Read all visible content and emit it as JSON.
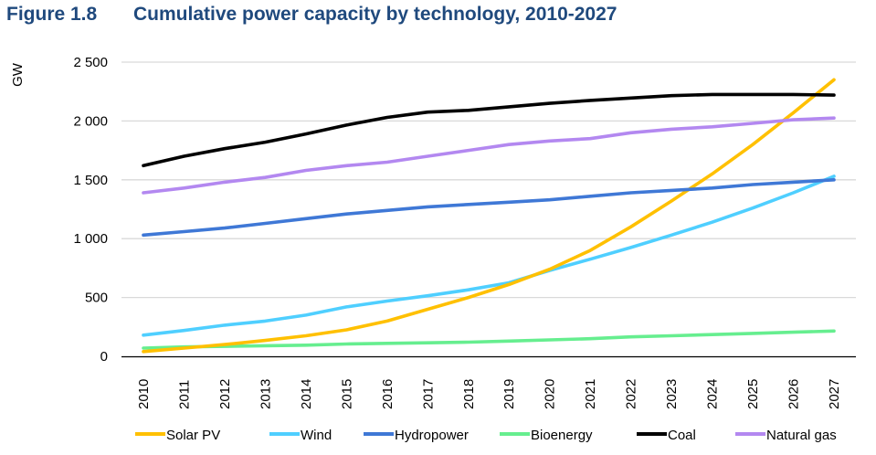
{
  "header": {
    "figure_label": "Figure 1.8",
    "title": "Cumulative power capacity by technology, 2010-2027"
  },
  "chart_data": {
    "type": "line",
    "title": "Cumulative power capacity by technology, 2010-2027",
    "xlabel": "",
    "ylabel": "GW",
    "ylim": [
      0,
      2500
    ],
    "yticks": [
      0,
      500,
      1000,
      1500,
      2000,
      2500
    ],
    "ytick_labels": [
      "0",
      "500",
      "1 000",
      "1 500",
      "2 000",
      "2 500"
    ],
    "grid": "horizontal",
    "legend_position": "bottom",
    "x": [
      "2010",
      "2011",
      "2012",
      "2013",
      "2014",
      "2015",
      "2016",
      "2017",
      "2018",
      "2019",
      "2020",
      "2021",
      "2022",
      "2023",
      "2024",
      "2025",
      "2026",
      "2027"
    ],
    "series": [
      {
        "name": "Solar PV",
        "color": "#ffc000",
        "values": [
          40,
          70,
          100,
          135,
          175,
          225,
          300,
          400,
          500,
          610,
          740,
          900,
          1100,
          1320,
          1550,
          1800,
          2070,
          2350
        ]
      },
      {
        "name": "Wind",
        "color": "#4fcfff",
        "values": [
          180,
          220,
          265,
          300,
          350,
          420,
          470,
          515,
          565,
          625,
          730,
          825,
          925,
          1030,
          1140,
          1260,
          1390,
          1530
        ]
      },
      {
        "name": "Hydropower",
        "color": "#3f78d6",
        "values": [
          1030,
          1060,
          1090,
          1130,
          1170,
          1210,
          1240,
          1270,
          1290,
          1310,
          1330,
          1360,
          1390,
          1410,
          1430,
          1460,
          1480,
          1500
        ]
      },
      {
        "name": "Bioenergy",
        "color": "#66ee8f",
        "values": [
          70,
          80,
          85,
          90,
          95,
          105,
          110,
          115,
          120,
          130,
          140,
          150,
          165,
          175,
          185,
          195,
          205,
          215
        ]
      },
      {
        "name": "Coal",
        "color": "#000000",
        "values": [
          1620,
          1700,
          1765,
          1820,
          1890,
          1965,
          2030,
          2075,
          2090,
          2120,
          2150,
          2175,
          2195,
          2215,
          2225,
          2225,
          2225,
          2220
        ]
      },
      {
        "name": "Natural gas",
        "color": "#b388f0",
        "values": [
          1390,
          1430,
          1480,
          1520,
          1580,
          1620,
          1650,
          1700,
          1750,
          1800,
          1830,
          1850,
          1900,
          1930,
          1950,
          1980,
          2010,
          2025
        ]
      }
    ]
  }
}
